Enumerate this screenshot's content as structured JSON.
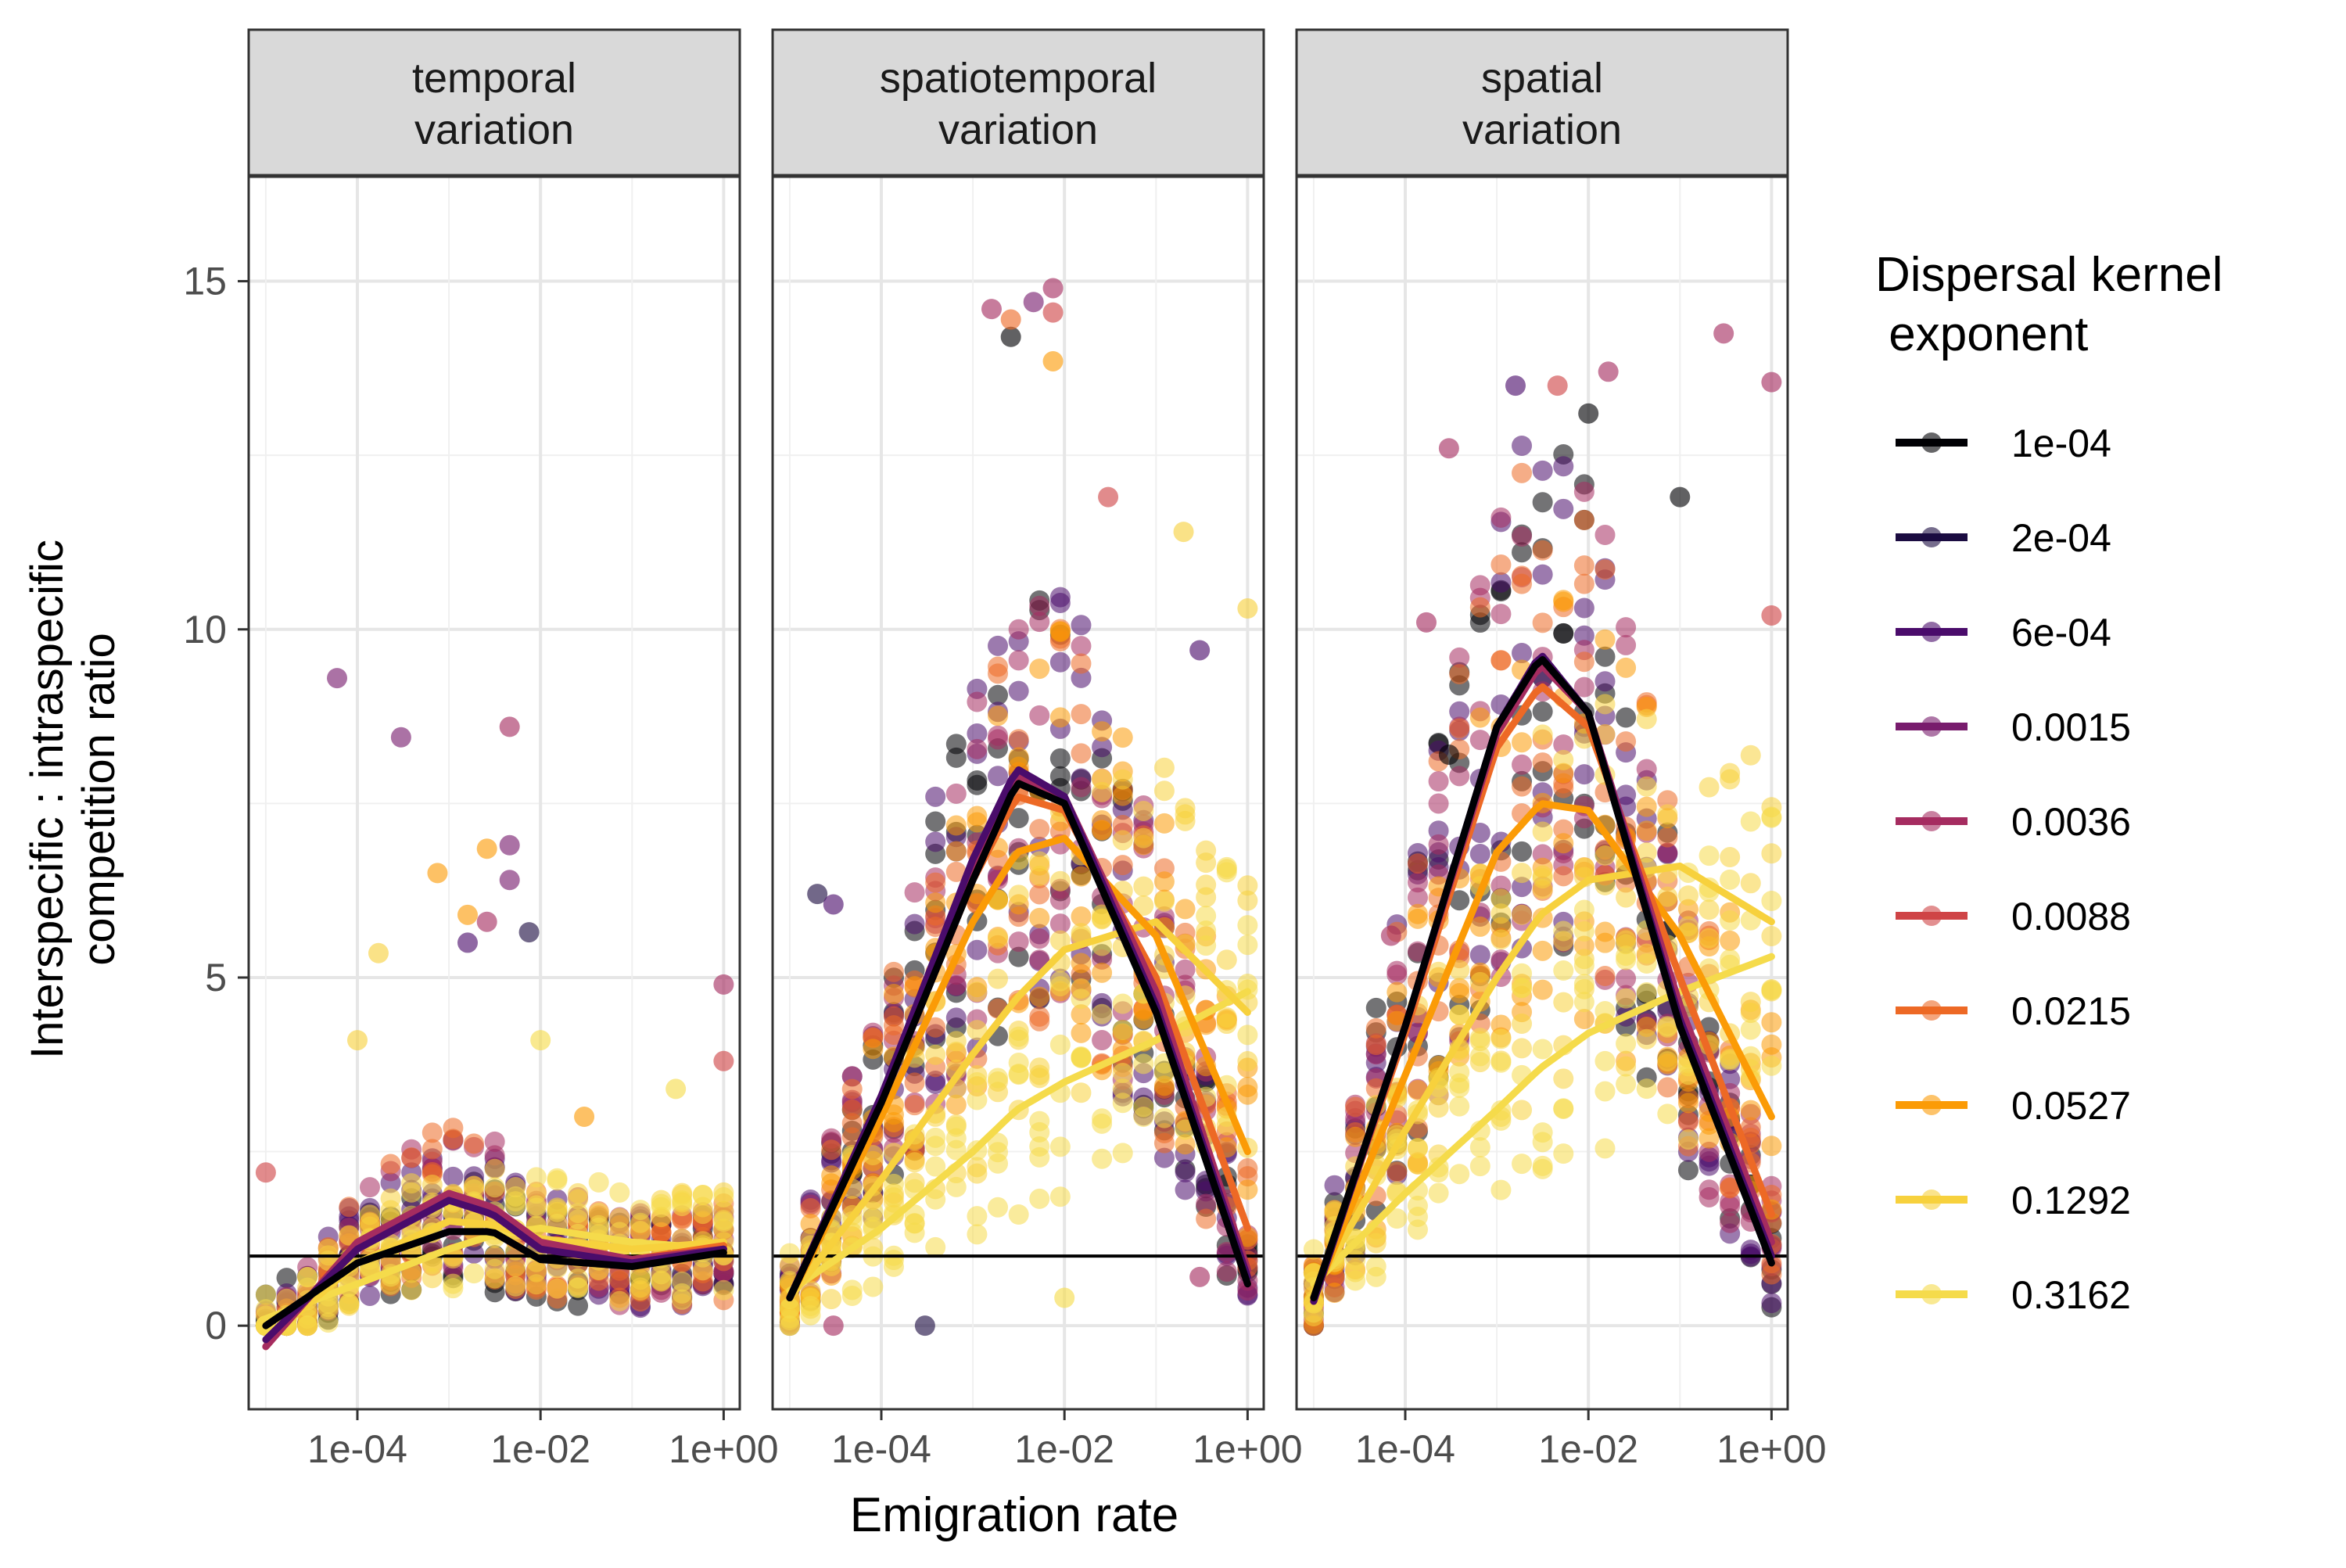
{
  "chart_data": {
    "type": "scatter",
    "title": "",
    "xlabel": "Emigration rate",
    "ylabel_lines": [
      "Interspecific : intraspecific",
      "competition ratio"
    ],
    "x_scale": "log10",
    "xlim": [
      6.5e-06,
      1.5
    ],
    "ylim": [
      -1.2,
      16.5
    ],
    "x_ticks": [
      {
        "value": 0.0001,
        "label": "1e-04"
      },
      {
        "value": 0.01,
        "label": "1e-02"
      },
      {
        "value": 1,
        "label": "1e+00"
      }
    ],
    "y_ticks": [
      {
        "value": 0,
        "label": "0"
      },
      {
        "value": 5,
        "label": "5"
      },
      {
        "value": 10,
        "label": "10"
      },
      {
        "value": 15,
        "label": "15"
      }
    ],
    "reference_line_y": 1,
    "grid": true,
    "legend": {
      "title_lines": [
        "Dispersal kernel",
        " exponent"
      ],
      "placement": "right"
    },
    "series": [
      {
        "name": "1e-04",
        "color": "#000004"
      },
      {
        "name": "2e-04",
        "color": "#1B0C41"
      },
      {
        "name": "6e-04",
        "color": "#4A0C6B"
      },
      {
        "name": "0.0015",
        "color": "#781C6D"
      },
      {
        "name": "0.0036",
        "color": "#A52C60"
      },
      {
        "name": "0.0088",
        "color": "#CF4446"
      },
      {
        "name": "0.0215",
        "color": "#ED6925"
      },
      {
        "name": "0.0527",
        "color": "#FB9B06"
      },
      {
        "name": "0.1292",
        "color": "#F7D13D"
      },
      {
        "name": "0.3162",
        "color": "#F5DB4B"
      }
    ],
    "panels": [
      {
        "strip_lines": [
          "temporal",
          "variation"
        ],
        "curves": [
          {
            "series": "1e-04",
            "x": [
              1e-05,
              0.0001,
              0.001,
              0.003,
              0.01,
              0.1,
              1
            ],
            "y": [
              0,
              0.9,
              1.35,
              1.35,
              0.95,
              0.85,
              1.05
            ]
          },
          {
            "series": "6e-04",
            "x": [
              1e-05,
              0.0001,
              0.001,
              0.003,
              0.01,
              0.1,
              1
            ],
            "y": [
              -0.2,
              1.1,
              1.8,
              1.6,
              1.1,
              0.9,
              1.1
            ]
          },
          {
            "series": "0.0036",
            "x": [
              1e-05,
              0.0001,
              0.001,
              0.003,
              0.01,
              0.1,
              1
            ],
            "y": [
              -0.3,
              1.2,
              1.9,
              1.7,
              1.2,
              0.95,
              1.1
            ]
          },
          {
            "series": "0.0215",
            "x": [
              1e-05,
              0.0001,
              0.001,
              0.003,
              0.01,
              0.1,
              1
            ],
            "y": [
              -0.3,
              1.2,
              1.9,
              1.6,
              1.15,
              0.95,
              1.15
            ]
          },
          {
            "series": "0.1292",
            "x": [
              1e-05,
              0.0001,
              0.001,
              0.003,
              0.01,
              0.1,
              1
            ],
            "y": [
              -0.2,
              0.9,
              1.5,
              1.45,
              1.25,
              1.1,
              1.2
            ]
          },
          {
            "series": "0.3162",
            "x": [
              1e-05,
              0.0001,
              0.001,
              0.003,
              0.01,
              0.1,
              1
            ],
            "y": [
              0.1,
              0.6,
              1.1,
              1.3,
              1.4,
              1.2,
              1.1
            ]
          }
        ],
        "outliers": [
          {
            "x": 1e-05,
            "y": 2.2,
            "series": "0.0088"
          },
          {
            "x": 6e-05,
            "y": 9.3,
            "series": "0.0015"
          },
          {
            "x": 0.0003,
            "y": 8.45,
            "series": "0.0015"
          },
          {
            "x": 0.0046,
            "y": 8.6,
            "series": "0.0036"
          },
          {
            "x": 0.0046,
            "y": 6.9,
            "series": "0.0015"
          },
          {
            "x": 0.0046,
            "y": 6.4,
            "series": "0.0015"
          },
          {
            "x": 0.0026,
            "y": 6.85,
            "series": "0.0527"
          },
          {
            "x": 0.00075,
            "y": 6.5,
            "series": "0.0527"
          },
          {
            "x": 0.0075,
            "y": 5.65,
            "series": "2e-04"
          },
          {
            "x": 0.0016,
            "y": 5.9,
            "series": "0.0527"
          },
          {
            "x": 0.00017,
            "y": 5.35,
            "series": "0.1292"
          },
          {
            "x": 0.0026,
            "y": 5.8,
            "series": "0.0036"
          },
          {
            "x": 0.0016,
            "y": 5.5,
            "series": "6e-04"
          },
          {
            "x": 1,
            "y": 4.9,
            "series": "0.0036"
          },
          {
            "x": 1,
            "y": 3.8,
            "series": "0.0088"
          },
          {
            "x": 0.0001,
            "y": 4.1,
            "series": "0.1292"
          },
          {
            "x": 0.01,
            "y": 4.1,
            "series": "0.3162"
          },
          {
            "x": 0.3,
            "y": 3.4,
            "series": "0.3162"
          },
          {
            "x": 0.03,
            "y": 3.0,
            "series": "0.0527"
          }
        ]
      },
      {
        "strip_lines": [
          "spatiotemporal",
          "variation"
        ],
        "curves": [
          {
            "series": "1e-04",
            "x": [
              1e-05,
              0.0001,
              0.001,
              0.003,
              0.01,
              0.1,
              1
            ],
            "y": [
              0.4,
              3.2,
              6.4,
              7.8,
              7.5,
              4.5,
              0.6
            ]
          },
          {
            "series": "6e-04",
            "x": [
              1e-05,
              0.0001,
              0.001,
              0.003,
              0.01,
              0.1,
              1
            ],
            "y": [
              0.4,
              3.3,
              6.7,
              8.0,
              7.6,
              4.6,
              0.7
            ]
          },
          {
            "series": "0.0036",
            "x": [
              1e-05,
              0.0001,
              0.001,
              0.003,
              0.01,
              0.1,
              1
            ],
            "y": [
              0.4,
              3.3,
              6.6,
              7.9,
              7.6,
              4.8,
              0.8
            ]
          },
          {
            "series": "0.0215",
            "x": [
              1e-05,
              0.0001,
              0.001,
              0.003,
              0.01,
              0.1,
              1
            ],
            "y": [
              0.4,
              3.2,
              6.4,
              7.6,
              7.4,
              5.0,
              1.4
            ]
          },
          {
            "series": "0.0527",
            "x": [
              1e-05,
              0.0001,
              0.001,
              0.003,
              0.01,
              0.1,
              1
            ],
            "y": [
              0.4,
              3.0,
              5.8,
              6.8,
              7.0,
              5.6,
              2.5
            ]
          },
          {
            "series": "0.1292",
            "x": [
              1e-05,
              0.0001,
              0.001,
              0.003,
              0.01,
              0.1,
              1
            ],
            "y": [
              0.4,
              2.1,
              3.9,
              4.7,
              5.4,
              5.8,
              4.5
            ]
          },
          {
            "series": "0.3162",
            "x": [
              1e-05,
              0.0001,
              0.001,
              0.003,
              0.01,
              0.1,
              1
            ],
            "y": [
              0.5,
              1.4,
              2.5,
              3.1,
              3.5,
              4.1,
              4.8
            ]
          }
        ],
        "outliers": [
          {
            "x": 0.0016,
            "y": 14.6,
            "series": "0.0036"
          },
          {
            "x": 0.0046,
            "y": 14.7,
            "series": "0.0015"
          },
          {
            "x": 0.0075,
            "y": 14.9,
            "series": "0.0036"
          },
          {
            "x": 0.0026,
            "y": 14.2,
            "series": "1e-04"
          },
          {
            "x": 0.0026,
            "y": 14.45,
            "series": "0.0215"
          },
          {
            "x": 0.0075,
            "y": 14.55,
            "series": "0.0088"
          },
          {
            "x": 0.0075,
            "y": 13.85,
            "series": "0.0527"
          },
          {
            "x": 0.03,
            "y": 11.9,
            "series": "0.0088"
          },
          {
            "x": 0.2,
            "y": 11.4,
            "series": "0.1292"
          },
          {
            "x": 1,
            "y": 10.3,
            "series": "0.1292"
          },
          {
            "x": 2e-05,
            "y": 6.2,
            "series": "2e-04"
          },
          {
            "x": 3e-05,
            "y": 6.05,
            "series": "6e-04"
          },
          {
            "x": 0.0003,
            "y": 0.0,
            "series": "2e-04"
          },
          {
            "x": 3e-05,
            "y": 0.0,
            "series": "0.0036"
          },
          {
            "x": 0.01,
            "y": 0.4,
            "series": "0.3162"
          },
          {
            "x": 0.3,
            "y": 0.7,
            "series": "0.0036"
          },
          {
            "x": 0.3,
            "y": 9.7,
            "series": "6e-04"
          }
        ]
      },
      {
        "strip_lines": [
          "spatial",
          "variation"
        ],
        "curves": [
          {
            "series": "1e-04",
            "x": [
              1e-05,
              0.0001,
              0.001,
              0.003,
              0.01,
              0.1,
              1
            ],
            "y": [
              0.4,
              4.3,
              8.6,
              9.6,
              8.8,
              4.3,
              0.9
            ]
          },
          {
            "series": "6e-04",
            "x": [
              1e-05,
              0.0001,
              0.001,
              0.003,
              0.01,
              0.1,
              1
            ],
            "y": [
              0.35,
              4.3,
              8.6,
              9.65,
              8.8,
              4.4,
              1.0
            ]
          },
          {
            "series": "0.0036",
            "x": [
              1e-05,
              0.0001,
              0.001,
              0.003,
              0.01,
              0.1,
              1
            ],
            "y": [
              0.35,
              4.3,
              8.5,
              9.5,
              8.8,
              4.6,
              1.2
            ]
          },
          {
            "series": "0.0215",
            "x": [
              1e-05,
              0.0001,
              0.001,
              0.003,
              0.01,
              0.1,
              1
            ],
            "y": [
              0.4,
              4.2,
              8.3,
              9.2,
              8.6,
              5.0,
              1.6
            ]
          },
          {
            "series": "0.0527",
            "x": [
              1e-05,
              0.0001,
              0.001,
              0.003,
              0.01,
              0.1,
              1
            ],
            "y": [
              0.4,
              3.6,
              6.8,
              7.5,
              7.4,
              5.6,
              3.0
            ]
          },
          {
            "series": "0.1292",
            "x": [
              1e-05,
              0.0001,
              0.001,
              0.003,
              0.01,
              0.1,
              1
            ],
            "y": [
              0.5,
              2.8,
              5.0,
              5.9,
              6.4,
              6.6,
              5.8
            ]
          },
          {
            "series": "0.3162",
            "x": [
              1e-05,
              0.0001,
              0.001,
              0.003,
              0.01,
              0.1,
              1
            ],
            "y": [
              0.6,
              1.9,
              3.1,
              3.7,
              4.2,
              4.8,
              5.3
            ]
          }
        ],
        "outliers": [
          {
            "x": 0.0003,
            "y": 12.6,
            "series": "0.0036"
          },
          {
            "x": 0.0016,
            "y": 13.5,
            "series": "6e-04"
          },
          {
            "x": 0.0046,
            "y": 13.5,
            "series": "0.0088"
          },
          {
            "x": 0.01,
            "y": 13.1,
            "series": "1e-04"
          },
          {
            "x": 0.0165,
            "y": 13.7,
            "series": "0.0036"
          },
          {
            "x": 0.3,
            "y": 14.25,
            "series": "0.0036"
          },
          {
            "x": 1,
            "y": 13.55,
            "series": "0.0036"
          },
          {
            "x": 0.1,
            "y": 11.9,
            "series": "1e-04"
          },
          {
            "x": 0.00017,
            "y": 10.1,
            "series": "0.0036"
          },
          {
            "x": 0.0003,
            "y": 8.2,
            "series": "1e-04"
          },
          {
            "x": 7e-05,
            "y": 5.6,
            "series": "0.0036"
          },
          {
            "x": 1,
            "y": 10.2,
            "series": "0.0088"
          }
        ]
      }
    ]
  }
}
